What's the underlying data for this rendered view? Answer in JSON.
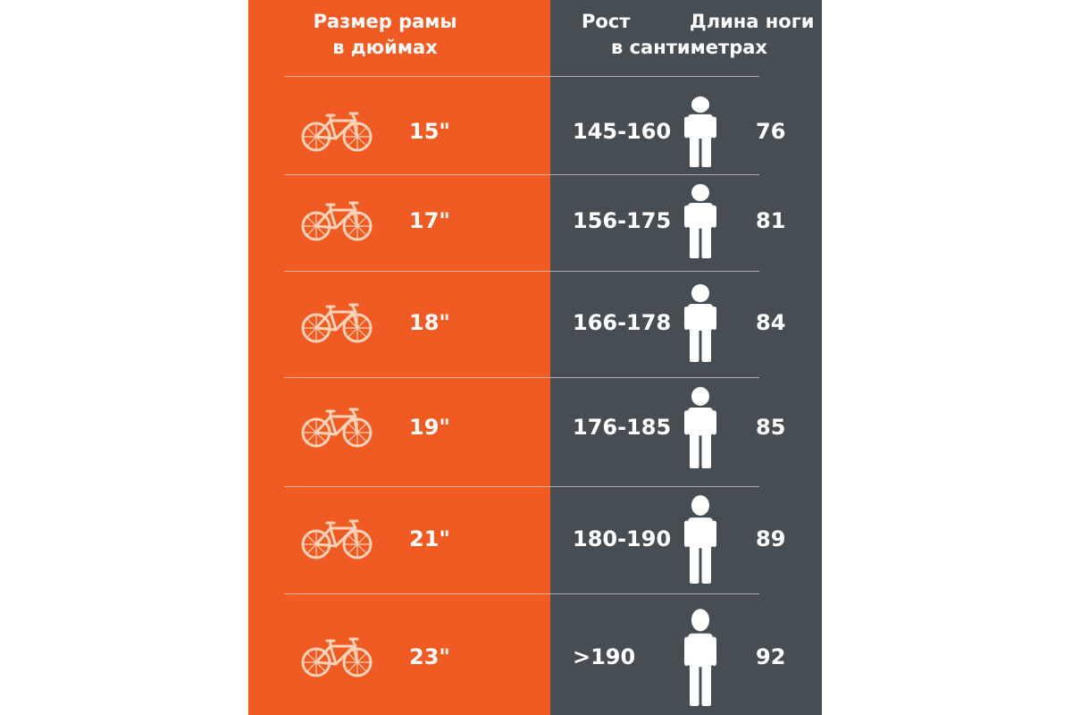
{
  "headers": {
    "frame_size": [
      "Размер рамы",
      "в дюймах"
    ],
    "height": "Рост",
    "leg_length": "Длина ноги",
    "units": "в сантиметрах"
  },
  "colors": {
    "accent": "#f05a23",
    "dark": "#474e53",
    "text": "#ffffff"
  },
  "icons": {
    "bike": "bicycle-icon",
    "person": "person-icon"
  },
  "rows": [
    {
      "frame": "15\"",
      "height": "145-160",
      "leg": "76"
    },
    {
      "frame": "17\"",
      "height": "156-175",
      "leg": "81"
    },
    {
      "frame": "18\"",
      "height": "166-178",
      "leg": "84"
    },
    {
      "frame": "19\"",
      "height": "176-185",
      "leg": "85"
    },
    {
      "frame": "21\"",
      "height": "180-190",
      "leg": "89"
    },
    {
      "frame": "23\"",
      "height": ">190",
      "leg": "92"
    }
  ]
}
